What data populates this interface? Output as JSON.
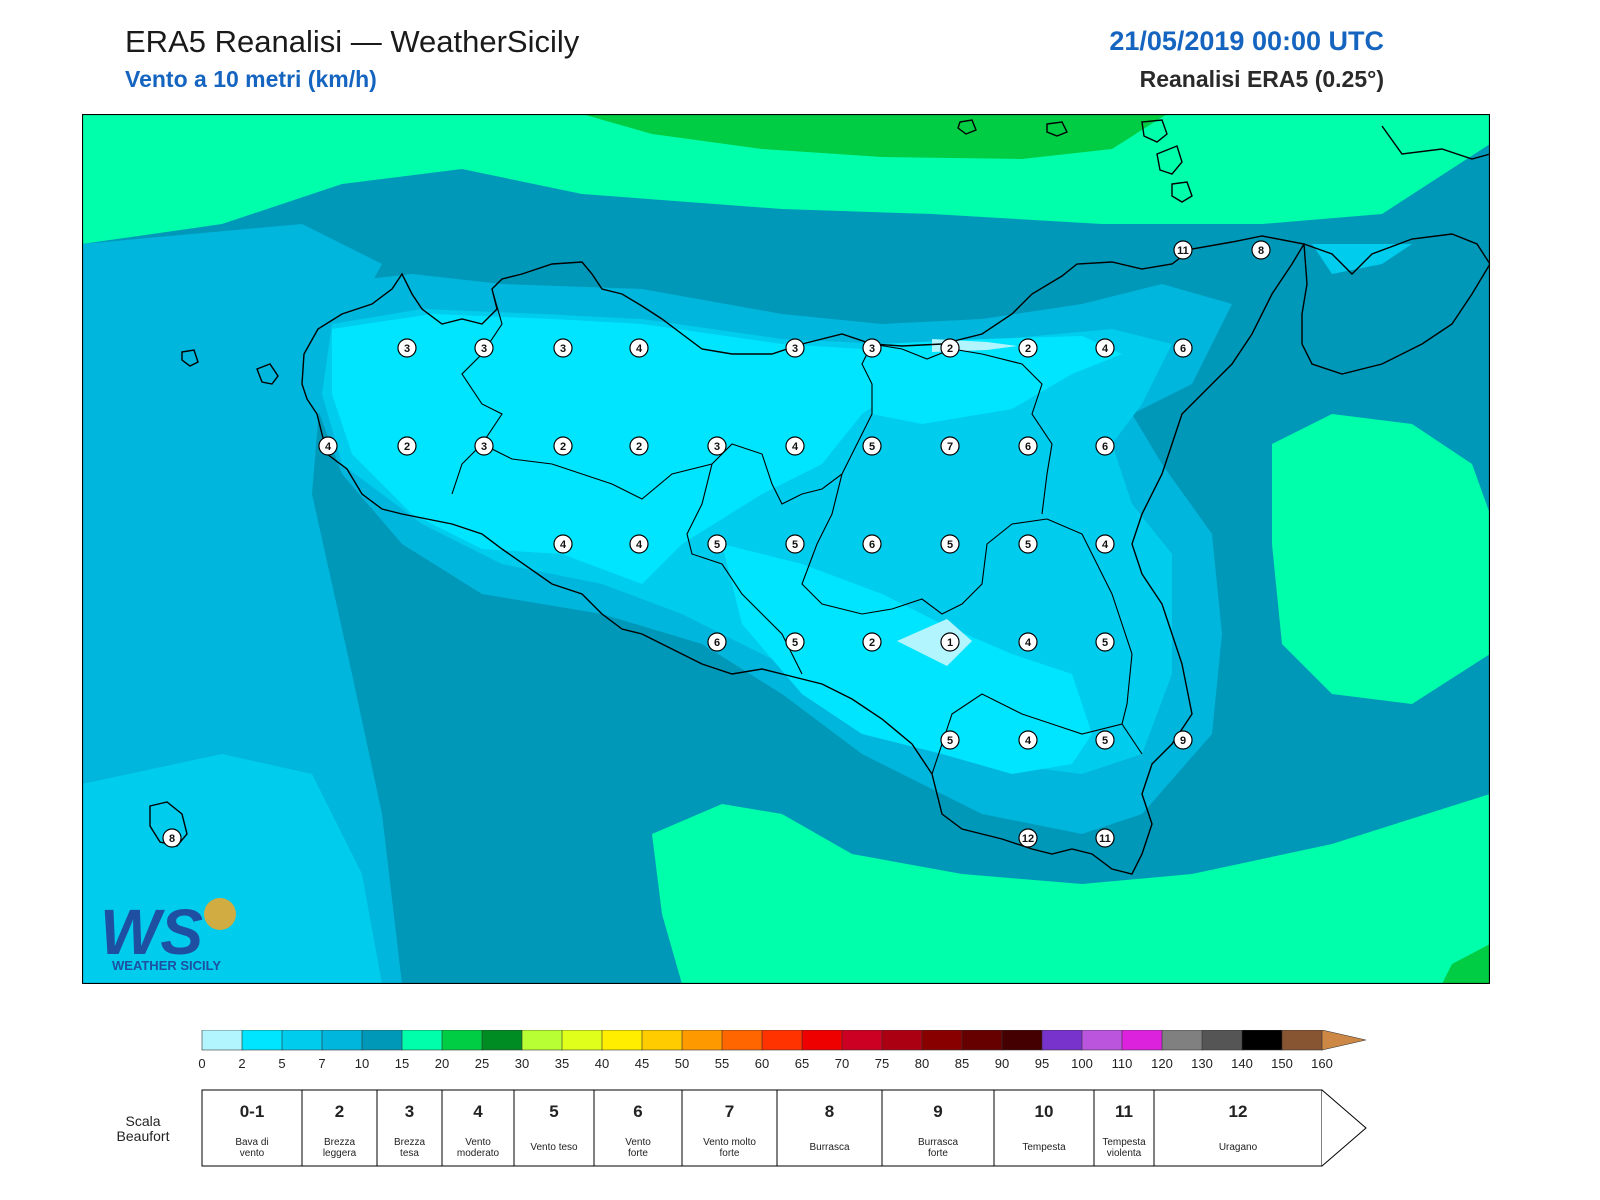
{
  "header": {
    "title": "ERA5 Reanalisi — WeatherSicily",
    "subtitle": "Vento a 10 metri (km/h)",
    "datetime": "21/05/2019 00:00 UTC",
    "source": "Reanalisi ERA5 (0.25°)"
  },
  "logo": {
    "text": "WS",
    "tagline": "WEATHER SICILY"
  },
  "colors": {
    "band_0_2": "#b3f5ff",
    "band_2_5": "#00e5ff",
    "band_5_7": "#00ccee",
    "band_7_10": "#00b6dc",
    "band_10_15": "#0098b8",
    "band_15_20": "#00ffaa",
    "band_20_25": "#00cc44",
    "coast": "#000000"
  },
  "markers": [
    {
      "label": "3"
    },
    {
      "label": "3"
    },
    {
      "label": "3"
    },
    {
      "label": "4"
    },
    {
      "label": "3"
    },
    {
      "label": "3"
    },
    {
      "label": "2"
    },
    {
      "label": "2"
    },
    {
      "label": "4"
    },
    {
      "label": "6"
    },
    {
      "label": "4"
    },
    {
      "label": "2"
    },
    {
      "label": "3"
    },
    {
      "label": "2"
    },
    {
      "label": "2"
    },
    {
      "label": "3"
    },
    {
      "label": "4"
    },
    {
      "label": "5"
    },
    {
      "label": "7"
    },
    {
      "label": "6"
    },
    {
      "label": "6"
    },
    {
      "label": "4"
    },
    {
      "label": "4"
    },
    {
      "label": "5"
    },
    {
      "label": "5"
    },
    {
      "label": "6"
    },
    {
      "label": "5"
    },
    {
      "label": "5"
    },
    {
      "label": "4"
    },
    {
      "label": "6"
    },
    {
      "label": "5"
    },
    {
      "label": "2"
    },
    {
      "label": "1"
    },
    {
      "label": "4"
    },
    {
      "label": "5"
    },
    {
      "label": "5"
    },
    {
      "label": "4"
    },
    {
      "label": "5"
    },
    {
      "label": "9"
    },
    {
      "label": "12"
    },
    {
      "label": "11"
    },
    {
      "label": "11"
    },
    {
      "label": "8"
    },
    {
      "label": "8"
    }
  ],
  "colorbar": {
    "ticks": [
      "0",
      "2",
      "5",
      "7",
      "10",
      "15",
      "20",
      "25",
      "30",
      "35",
      "40",
      "45",
      "50",
      "55",
      "60",
      "65",
      "70",
      "75",
      "80",
      "85",
      "90",
      "95",
      "100",
      "110",
      "120",
      "130",
      "140",
      "150",
      "160"
    ],
    "colors": [
      "#b3f5ff",
      "#00e5ff",
      "#00ccee",
      "#00b6dc",
      "#0098b8",
      "#00ffaa",
      "#00cc44",
      "#008c22",
      "#b8ff33",
      "#e0ff1a",
      "#ffee00",
      "#ffcc00",
      "#ff9900",
      "#ff6600",
      "#ff3300",
      "#ee0000",
      "#cc0022",
      "#aa0011",
      "#880000",
      "#660000",
      "#440000",
      "#7733cc",
      "#bb55dd",
      "#dd22dd",
      "#808080",
      "#555555",
      "#000000",
      "#885533",
      "#cc8844"
    ]
  },
  "beaufort": {
    "title_line1": "Scala",
    "title_line2": "Beaufort",
    "cells": [
      {
        "num": "0-1",
        "desc1": "Bava di",
        "desc2": "vento"
      },
      {
        "num": "2",
        "desc1": "Brezza",
        "desc2": "leggera"
      },
      {
        "num": "3",
        "desc1": "Brezza",
        "desc2": "tesa"
      },
      {
        "num": "4",
        "desc1": "Vento",
        "desc2": "moderato"
      },
      {
        "num": "5",
        "desc1": "Vento teso",
        "desc2": ""
      },
      {
        "num": "6",
        "desc1": "Vento",
        "desc2": "forte"
      },
      {
        "num": "7",
        "desc1": "Vento molto",
        "desc2": "forte"
      },
      {
        "num": "8",
        "desc1": "Burrasca",
        "desc2": ""
      },
      {
        "num": "9",
        "desc1": "Burrasca",
        "desc2": "forte"
      },
      {
        "num": "10",
        "desc1": "Tempesta",
        "desc2": ""
      },
      {
        "num": "11",
        "desc1": "Tempesta",
        "desc2": "violenta"
      },
      {
        "num": "12",
        "desc1": "Uragano",
        "desc2": ""
      }
    ]
  }
}
